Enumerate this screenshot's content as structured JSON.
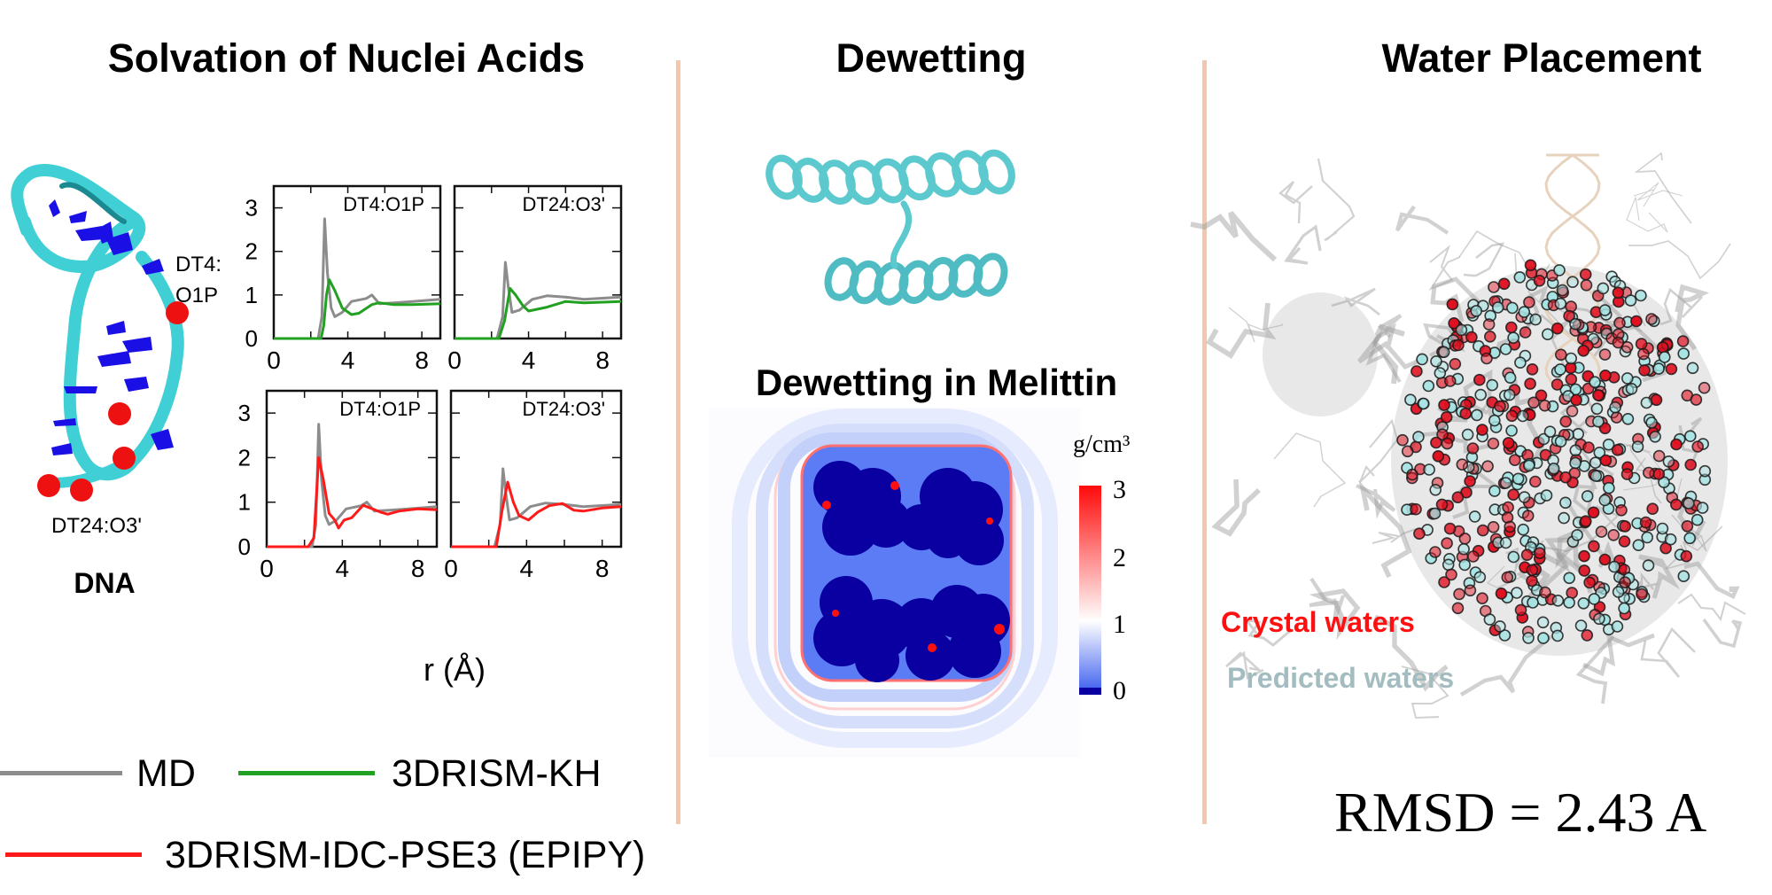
{
  "sections": {
    "solvation_title": "Solvation of Nuclei Acids",
    "dewetting_title": "Dewetting",
    "water_title": "Water Placement"
  },
  "dna_panel": {
    "label_dt4_a": "DT4:",
    "label_dt4_b": "O1P",
    "label_dt24": "DT24:O3'",
    "caption": "DNA"
  },
  "chart_data": {
    "type": "line",
    "xlabel": "r (Å)",
    "xlim": [
      0,
      9
    ],
    "ylim": [
      0,
      3.5
    ],
    "xticks": [
      "0",
      "4",
      "8"
    ],
    "yticks": [
      "0",
      "1",
      "2",
      "3"
    ],
    "grid": false,
    "panels": [
      {
        "title": "DT4:O1P",
        "series": [
          {
            "name": "MD",
            "color": "#8c8c8c",
            "x": [
              0,
              2.4,
              2.6,
              2.75,
              2.9,
              3.1,
              3.3,
              3.7,
              4.2,
              5.0,
              5.3,
              5.7,
              6.5,
              7.5,
              9
            ],
            "y": [
              0,
              0,
              0.5,
              2.75,
              1.5,
              0.7,
              0.5,
              0.6,
              0.85,
              0.92,
              1.0,
              0.8,
              0.82,
              0.85,
              0.9
            ]
          },
          {
            "name": "3DRISM-KH",
            "color": "#22a022",
            "x": [
              0,
              2.55,
              2.7,
              2.85,
              3.0,
              3.3,
              3.7,
              4.2,
              4.6,
              5.3,
              5.7,
              6.5,
              7.5,
              9
            ],
            "y": [
              0,
              0,
              0.3,
              1.0,
              1.35,
              1.1,
              0.7,
              0.55,
              0.58,
              0.78,
              0.82,
              0.78,
              0.78,
              0.8
            ]
          }
        ]
      },
      {
        "title": "DT24:O3'",
        "series": [
          {
            "name": "MD",
            "color": "#8c8c8c",
            "x": [
              0,
              2.3,
              2.6,
              2.75,
              2.9,
              3.1,
              3.5,
              4.2,
              5.0,
              6.0,
              7.0,
              9
            ],
            "y": [
              0,
              0,
              0.5,
              1.75,
              1.2,
              0.6,
              0.65,
              0.9,
              0.98,
              0.95,
              0.9,
              0.95
            ]
          },
          {
            "name": "3DRISM-KH",
            "color": "#22a022",
            "x": [
              0,
              2.4,
              2.7,
              3.0,
              3.3,
              3.7,
              4.0,
              5.0,
              6.0,
              7.0,
              9
            ],
            "y": [
              0,
              0,
              0.4,
              1.15,
              1.0,
              0.75,
              0.63,
              0.72,
              0.85,
              0.82,
              0.85
            ]
          }
        ]
      },
      {
        "title": "DT4:O1P",
        "series": [
          {
            "name": "MD",
            "color": "#8c8c8c",
            "x": [
              0,
              2.4,
              2.6,
              2.75,
              2.9,
              3.1,
              3.3,
              3.7,
              4.2,
              5.0,
              5.3,
              5.7,
              6.5,
              7.5,
              9
            ],
            "y": [
              0,
              0,
              0.5,
              2.75,
              1.5,
              0.7,
              0.5,
              0.6,
              0.85,
              0.92,
              1.0,
              0.8,
              0.82,
              0.85,
              0.9
            ]
          },
          {
            "name": "3DRISM-IDC-PSE3 (EPIPY)",
            "color": "#ff1a1a",
            "x": [
              0,
              2.2,
              2.5,
              2.75,
              3.0,
              3.3,
              3.6,
              3.8,
              4.1,
              4.5,
              5.1,
              5.6,
              6.0,
              6.4,
              7.0,
              8.0,
              9
            ],
            "y": [
              0,
              0,
              0.2,
              2.0,
              1.5,
              0.75,
              0.6,
              0.42,
              0.6,
              0.65,
              0.93,
              0.85,
              0.78,
              0.73,
              0.8,
              0.85,
              0.83
            ]
          }
        ]
      },
      {
        "title": "DT24:O3'",
        "series": [
          {
            "name": "MD",
            "color": "#8c8c8c",
            "x": [
              0,
              2.3,
              2.6,
              2.75,
              2.9,
              3.1,
              3.5,
              4.2,
              5.0,
              6.0,
              7.0,
              9
            ],
            "y": [
              0,
              0,
              0.5,
              1.75,
              1.2,
              0.6,
              0.65,
              0.9,
              0.98,
              0.95,
              0.9,
              0.95
            ]
          },
          {
            "name": "3DRISM-IDC-PSE3 (EPIPY)",
            "color": "#ff1a1a",
            "x": [
              0,
              2.4,
              2.7,
              3.0,
              3.3,
              3.6,
              4.1,
              4.6,
              5.2,
              5.9,
              6.5,
              7.0,
              8.0,
              9
            ],
            "y": [
              0,
              0,
              0.8,
              1.45,
              1.0,
              0.7,
              0.6,
              0.78,
              0.92,
              0.97,
              0.82,
              0.8,
              0.87,
              0.9
            ]
          }
        ]
      }
    ]
  },
  "legend": {
    "md": {
      "label": "MD",
      "color": "#8c8c8c"
    },
    "kh": {
      "label": "3DRISM-KH",
      "color": "#22a022"
    },
    "pse3": {
      "label": "3DRISM-IDC-PSE3 (EPIPY)",
      "color": "#ff1a1a"
    }
  },
  "dewetting": {
    "subtitle": "Dewetting in Melittin",
    "colorbar": {
      "unit": "g/cm³",
      "ticks": [
        "3",
        "2",
        "1",
        "0"
      ],
      "range": [
        0,
        3
      ]
    },
    "colors": {
      "dry": "#0a00a2",
      "low": "#5b7cf5",
      "bulk": "#ffffff",
      "high": "#ff1010"
    }
  },
  "water": {
    "crystal_label": "Crystal waters",
    "predicted_label": "Predicted waters",
    "crystal_color": "#ff1010",
    "predicted_color": "#a3bcc0",
    "rmsd": "RMSD = 2.43 A"
  }
}
